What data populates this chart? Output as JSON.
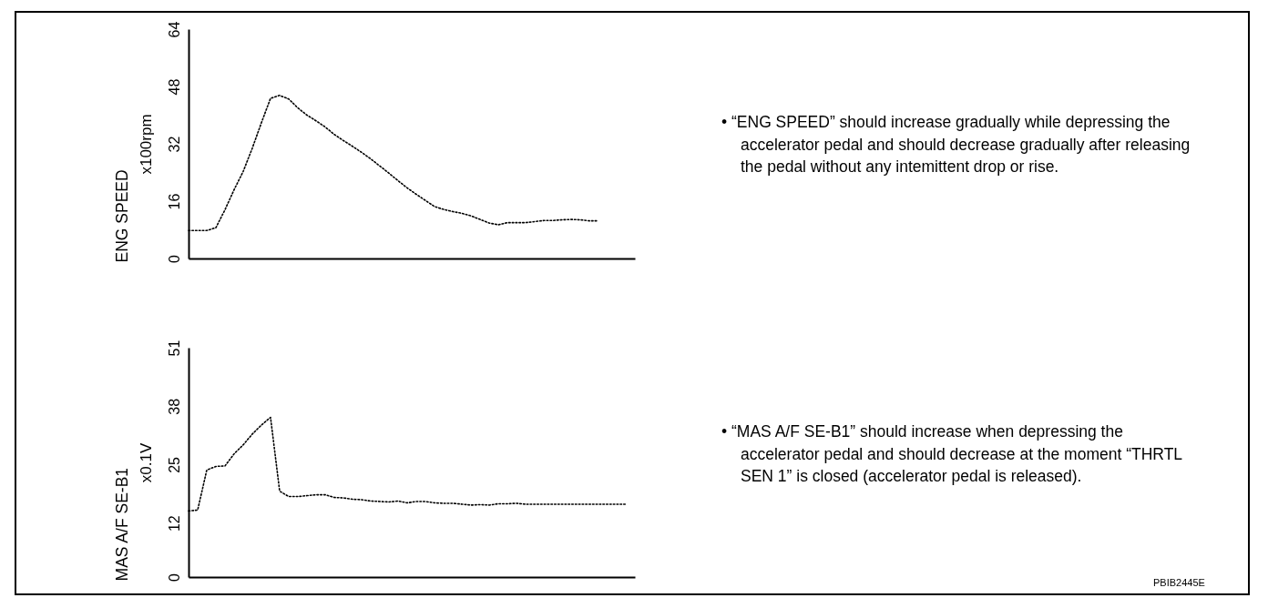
{
  "chart_data": [
    {
      "type": "line",
      "title": "ENG SPEED",
      "ylabel": "x100rpm",
      "categories": [
        null,
        null,
        null,
        null,
        null,
        null,
        null,
        null,
        null,
        null,
        null,
        null,
        null,
        null,
        null,
        null,
        null,
        null,
        null,
        null,
        null,
        null,
        null,
        null,
        null,
        null,
        null,
        null,
        null,
        null,
        null,
        null,
        null,
        null,
        null,
        null,
        null,
        null,
        null,
        null,
        null,
        null,
        null,
        null,
        null,
        null,
        null,
        null,
        null,
        null
      ],
      "series": [
        {
          "color": "#000000",
          "values": [
            7.8,
            7.8,
            7.8,
            8.6,
            13.6,
            19.2,
            24.3,
            30.8,
            37.9,
            44.7,
            45.5,
            44.5,
            42,
            40,
            38.4,
            36.7,
            34.6,
            32.9,
            31.3,
            29.6,
            27.8,
            25.8,
            23.8,
            21.7,
            19.7,
            17.9,
            16.2,
            14.5,
            13.7,
            13.1,
            12.6,
            11.9,
            10.9,
            9.9,
            9.4,
            10,
            10,
            10,
            10.3,
            10.6,
            10.6,
            10.8,
            10.9,
            10.8,
            10.5,
            10.5,
            null,
            null,
            null,
            null
          ]
        }
      ],
      "ylim": [
        0,
        64
      ],
      "yticks": [
        0,
        16,
        32,
        48,
        64
      ],
      "line_style": "dotted",
      "tick_labels": "y",
      "annotations": [
        "• “ENG SPEED” should increase gradually while depressing the accelerator pedal and should decrease gradually after releasing the pedal without any intemittent drop or rise."
      ]
    },
    {
      "type": "line",
      "title": "MAS A/F SE-B1",
      "ylabel": "x0.1V",
      "categories": [
        null,
        null,
        null,
        null,
        null,
        null,
        null,
        null,
        null,
        null,
        null,
        null,
        null,
        null,
        null,
        null,
        null,
        null,
        null,
        null,
        null,
        null,
        null,
        null,
        null,
        null,
        null,
        null,
        null,
        null,
        null,
        null,
        null,
        null,
        null,
        null,
        null,
        null,
        null,
        null,
        null,
        null,
        null,
        null,
        null,
        null,
        null,
        null,
        null,
        null
      ],
      "series": [
        {
          "color": "#000000",
          "values": [
            14.7,
            14.9,
            23.8,
            24.6,
            24.7,
            27.4,
            29.4,
            31.8,
            33.8,
            35.5,
            19.1,
            17.9,
            17.9,
            18.1,
            18.3,
            18.3,
            17.7,
            17.6,
            17.3,
            17.2,
            16.9,
            16.8,
            16.7,
            16.9,
            16.5,
            16.8,
            16.8,
            16.5,
            16.4,
            16.4,
            16.2,
            16,
            16.1,
            16,
            16.3,
            16.3,
            16.4,
            16.2,
            16.2,
            16.2,
            16.2,
            16.2,
            16.2,
            16.2,
            16.2,
            16.2,
            16.2,
            16.2,
            16.2,
            null
          ]
        }
      ],
      "ylim": [
        0,
        51
      ],
      "yticks": [
        0,
        12,
        25,
        38,
        51
      ],
      "line_style": "dotted",
      "tick_labels": "y",
      "annotations": [
        "• “MAS A/F SE-B1” should increase when depressing the accelerator pedal and  should decrease at the moment “THRTL SEN 1” is closed (accelerator pedal is released).",
        "PBIB2445E"
      ]
    }
  ]
}
